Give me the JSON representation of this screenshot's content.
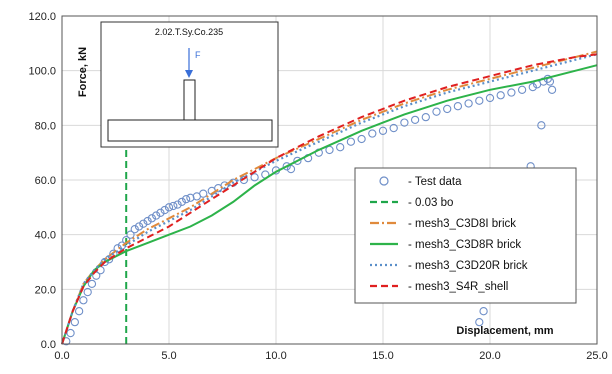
{
  "chart_data": {
    "type": "line",
    "xlabel": "Displacement, mm",
    "ylabel": "Force, kN",
    "xlim": [
      0,
      25
    ],
    "ylim": [
      0,
      120
    ],
    "xticks": [
      "0.0",
      "5.0",
      "10.0",
      "15.0",
      "20.0",
      "25.0"
    ],
    "yticks": [
      "0.0",
      "20.0",
      "40.0",
      "60.0",
      "80.0",
      "100.0",
      "120.0"
    ],
    "grid": true,
    "legend_position": "right",
    "inset": {
      "title": "2.02.T.Sy.Co.235",
      "force_label": "F"
    },
    "series": [
      {
        "name": "- Test data",
        "style": "markers",
        "color": "#6f8fc8",
        "points": [
          [
            0.2,
            1
          ],
          [
            0.4,
            4
          ],
          [
            0.6,
            8
          ],
          [
            0.8,
            12
          ],
          [
            1.0,
            16
          ],
          [
            1.2,
            19
          ],
          [
            1.4,
            22
          ],
          [
            1.6,
            25
          ],
          [
            1.8,
            27
          ],
          [
            2.0,
            30
          ],
          [
            2.2,
            31
          ],
          [
            2.4,
            33
          ],
          [
            2.6,
            35
          ],
          [
            2.8,
            36
          ],
          [
            3.0,
            38
          ],
          [
            3.2,
            40
          ],
          [
            3.4,
            42
          ],
          [
            3.6,
            43
          ],
          [
            3.8,
            44
          ],
          [
            4.0,
            45
          ],
          [
            4.2,
            46
          ],
          [
            4.4,
            47
          ],
          [
            4.6,
            48
          ],
          [
            4.8,
            49
          ],
          [
            5.0,
            50
          ],
          [
            5.2,
            50.5
          ],
          [
            5.4,
            51
          ],
          [
            5.6,
            52
          ],
          [
            5.8,
            53
          ],
          [
            6.0,
            53.5
          ],
          [
            6.3,
            54
          ],
          [
            6.6,
            55
          ],
          [
            7.0,
            56
          ],
          [
            7.3,
            57
          ],
          [
            7.6,
            58
          ],
          [
            8.0,
            59
          ],
          [
            8.5,
            60
          ],
          [
            9.0,
            61
          ],
          [
            9.5,
            62
          ],
          [
            10.0,
            63.5
          ],
          [
            10.5,
            65
          ],
          [
            10.7,
            64
          ],
          [
            11.0,
            67
          ],
          [
            11.5,
            68
          ],
          [
            12.0,
            70
          ],
          [
            12.5,
            71
          ],
          [
            13.0,
            72
          ],
          [
            13.5,
            74
          ],
          [
            14.0,
            75
          ],
          [
            14.5,
            77
          ],
          [
            15.0,
            78
          ],
          [
            15.5,
            79
          ],
          [
            16.0,
            81
          ],
          [
            16.5,
            82
          ],
          [
            17.0,
            83
          ],
          [
            17.5,
            85
          ],
          [
            18.0,
            86
          ],
          [
            18.5,
            87
          ],
          [
            19.0,
            88
          ],
          [
            19.5,
            89
          ],
          [
            20.0,
            90
          ],
          [
            20.5,
            91
          ],
          [
            21.0,
            92
          ],
          [
            21.5,
            93
          ],
          [
            22.0,
            94
          ],
          [
            22.2,
            95
          ],
          [
            22.5,
            96
          ],
          [
            22.7,
            97
          ],
          [
            22.8,
            96
          ],
          [
            22.9,
            93
          ],
          [
            22.4,
            80
          ],
          [
            21.9,
            65
          ],
          [
            21.5,
            45
          ],
          [
            21.0,
            30
          ],
          [
            20.3,
            18
          ],
          [
            19.7,
            12
          ],
          [
            19.5,
            8
          ]
        ]
      },
      {
        "name": "- 0.03 bo",
        "style": "dashed",
        "color": "#1fa64a",
        "x": [
          3.0,
          3.0
        ],
        "y": [
          0,
          72
        ]
      },
      {
        "name": "- mesh3_C3D8I brick",
        "style": "dashdot",
        "color": "#e08a3c",
        "x": [
          0,
          0.5,
          1,
          1.5,
          2,
          3,
          4,
          5,
          6,
          7,
          8,
          9,
          10,
          12,
          14,
          16,
          18,
          20,
          22,
          24,
          25
        ],
        "y": [
          0,
          12,
          22,
          27,
          31,
          37,
          42,
          46,
          50,
          55,
          60,
          64,
          68,
          75,
          82,
          88,
          93,
          97,
          101,
          105,
          107
        ]
      },
      {
        "name": "- mesh3_C3D8R brick",
        "style": "solid",
        "color": "#2db34a",
        "x": [
          0,
          0.5,
          1,
          1.5,
          2,
          3,
          4,
          5,
          6,
          7,
          8,
          9,
          10,
          12,
          14,
          16,
          18,
          20,
          22,
          24,
          25
        ],
        "y": [
          0,
          12,
          21,
          27,
          30,
          34,
          37,
          40,
          43,
          47,
          52,
          58,
          63,
          71,
          78,
          84,
          89,
          93,
          96,
          100,
          102
        ]
      },
      {
        "name": "- mesh3_C3D20R brick",
        "style": "dotted",
        "color": "#5b8fc9",
        "x": [
          0,
          0.5,
          1,
          1.5,
          2,
          3,
          4,
          5,
          6,
          7,
          8,
          9,
          10,
          12,
          14,
          16,
          18,
          20,
          22,
          24,
          25
        ],
        "y": [
          0,
          12,
          22,
          27,
          31,
          36,
          41,
          45,
          49,
          54,
          59,
          63,
          67,
          74,
          81,
          87,
          92,
          96,
          100,
          104,
          106
        ]
      },
      {
        "name": "- mesh3_S4R_shell",
        "style": "dashed",
        "color": "#e02020",
        "x": [
          0,
          0.5,
          1,
          1.5,
          2,
          3,
          4,
          5,
          6,
          7,
          8,
          9,
          10,
          12,
          14,
          16,
          18,
          20,
          22,
          24,
          25
        ],
        "y": [
          0,
          12,
          21,
          26,
          30,
          35,
          39,
          43,
          48,
          53,
          58,
          63,
          68,
          76,
          83,
          89,
          94,
          98,
          102,
          105,
          106
        ]
      }
    ]
  }
}
